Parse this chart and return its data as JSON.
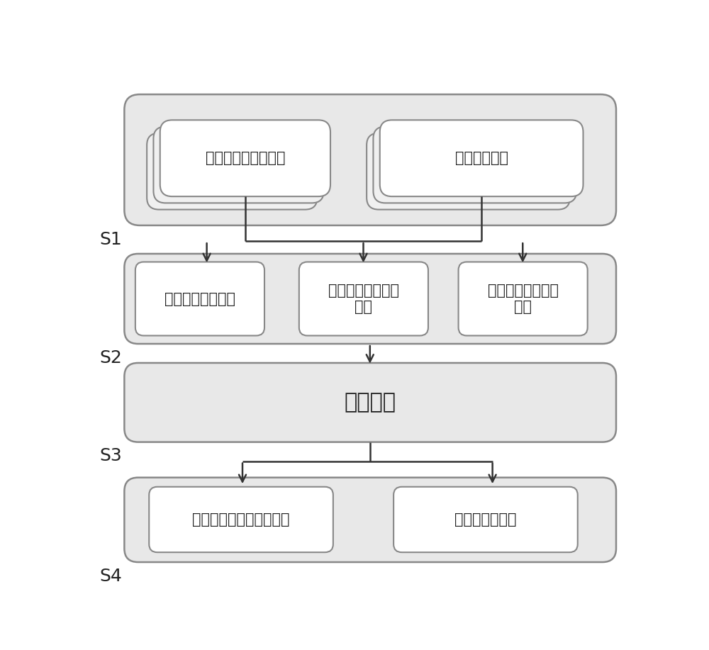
{
  "bg_color": "#ffffff",
  "outer_box_fill": "#e8e8e8",
  "outer_box_edge": "#888888",
  "inner_box_fill": "#f0f0f0",
  "inner_box_edge": "#888888",
  "white_box_fill": "#ffffff",
  "white_box_edge": "#888888",
  "arrow_color": "#333333",
  "label_color": "#222222",
  "s_label_color": "#222222",
  "s1_label": "S1",
  "s2_label": "S2",
  "s3_label": "S3",
  "s4_label": "S4",
  "box1_left_text": "已参与话题用户信息",
  "box1_right_text": "备选用户信息",
  "box2_left_text": "备选用户因子函数",
  "box2_mid_text": "备选用户好友因子\n函数",
  "box2_right_text": "备选用户社团因子\n函数",
  "box3_text": "预测模型",
  "box4_left_text": "备选用户是否会参与话题",
  "box4_right_text": "该话题热度趋势",
  "font_size_inner": 15,
  "font_size_s3": 22,
  "font_size_s_label": 18
}
